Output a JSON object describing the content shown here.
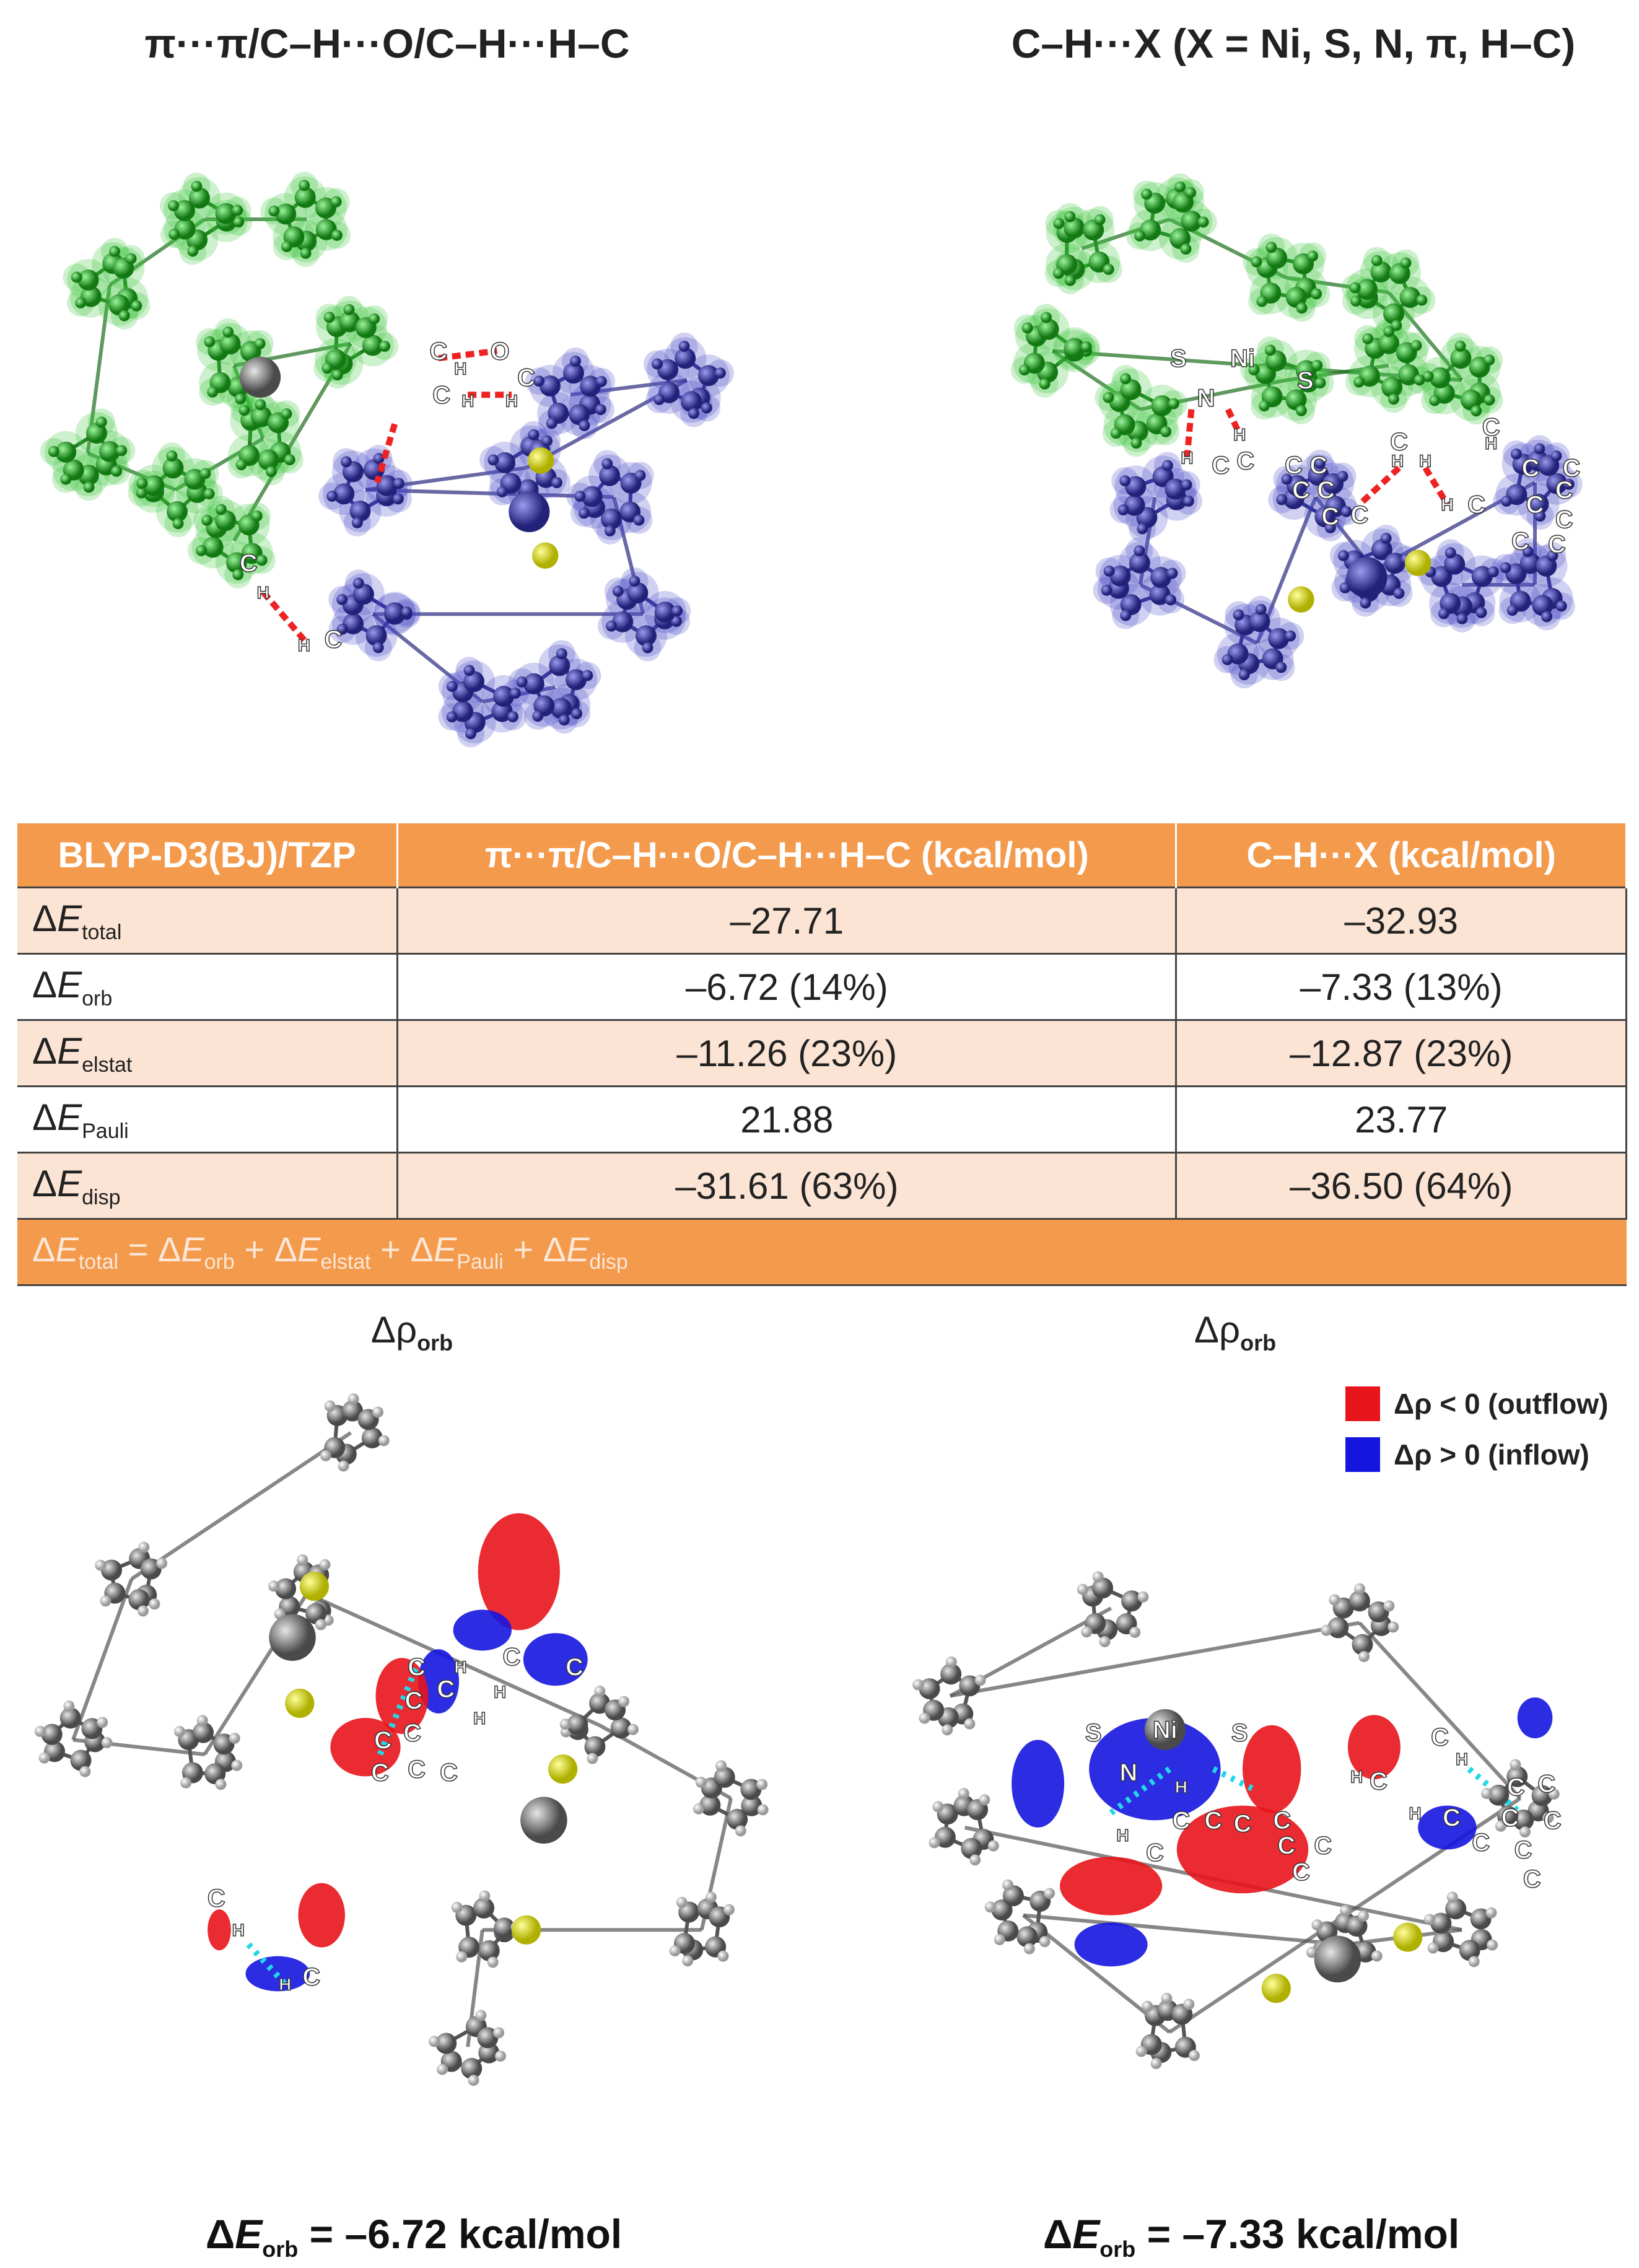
{
  "panels": {
    "top_left": {
      "title": "π···π/C–H···O/C–H···H–C",
      "atom_labels": [
        "C",
        "H",
        "O",
        "C",
        "C",
        "H",
        "H",
        "C",
        "H",
        "C",
        "H"
      ]
    },
    "top_right": {
      "title": "C–H···X (X = Ni, S, N, π, H–C)",
      "atom_labels": [
        "S",
        "Ni",
        "N",
        "S",
        "H",
        "H",
        "C",
        "C",
        "C",
        "C",
        "C",
        "C",
        "C",
        "C",
        "C",
        "H",
        "H",
        "C",
        "H",
        "C",
        "C",
        "C",
        "H",
        "C",
        "C",
        "C",
        "C",
        "C"
      ]
    },
    "bottom_left": {
      "heading": {
        "base": "Δρ",
        "sub": "orb"
      },
      "caption": {
        "delta": "Δ",
        "var": "E",
        "sub": "orb",
        "rest": "= –6.72 kcal/mol"
      },
      "atom_labels": [
        "C",
        "H",
        "C",
        "H",
        "C",
        "C",
        "C",
        "H",
        "C",
        "C",
        "C",
        "C",
        "C",
        "C",
        "H",
        "H",
        "C"
      ]
    },
    "bottom_right": {
      "heading": {
        "base": "Δρ",
        "sub": "orb"
      },
      "caption": {
        "delta": "Δ",
        "var": "E",
        "sub": "orb",
        "rest": "= –7.33 kcal/mol"
      },
      "atom_labels": [
        "S",
        "Ni",
        "S",
        "N",
        "H",
        "C",
        "C",
        "C",
        "C",
        "C",
        "C",
        "C",
        "C",
        "H",
        "C",
        "H",
        "H",
        "H",
        "C",
        "C",
        "C",
        "C",
        "C",
        "C",
        "C",
        "C",
        "C"
      ]
    }
  },
  "legend": [
    {
      "text": "Δρ < 0 (outflow)",
      "color": "#e8141b"
    },
    {
      "text": "Δρ > 0 (inflow)",
      "color": "#1515e0"
    }
  ],
  "table": {
    "header": [
      "BLYP-D3(BJ)/TZP",
      "π···π/C–H···O/C–H···H–C (kcal/mol)",
      "C–H···X (kcal/mol)"
    ],
    "rows": [
      {
        "label": {
          "delta": "Δ",
          "var": "E",
          "sub": "total"
        },
        "cells": [
          "–27.71",
          "–32.93"
        ]
      },
      {
        "label": {
          "delta": "Δ",
          "var": "E",
          "sub": "orb"
        },
        "cells": [
          "–6.72 (14%)",
          "–7.33 (13%)"
        ]
      },
      {
        "label": {
          "delta": "Δ",
          "var": "E",
          "sub": "elstat"
        },
        "cells": [
          "–11.26 (23%)",
          "–12.87 (23%)"
        ]
      },
      {
        "label": {
          "delta": "Δ",
          "var": "E",
          "sub": "Pauli"
        },
        "cells": [
          "21.88",
          "23.77"
        ]
      },
      {
        "label": {
          "delta": "Δ",
          "var": "E",
          "sub": "disp"
        },
        "cells": [
          "–31.61 (63%)",
          "–36.50 (64%)"
        ]
      }
    ],
    "footer": {
      "terms": [
        {
          "delta": "Δ",
          "var": "E",
          "sub": "total"
        },
        {
          "delta": "Δ",
          "var": "E",
          "sub": "orb"
        },
        {
          "delta": "Δ",
          "var": "E",
          "sub": "elstat"
        },
        {
          "delta": "Δ",
          "var": "E",
          "sub": "Pauli"
        },
        {
          "delta": "Δ",
          "var": "E",
          "sub": "disp"
        }
      ],
      "operators": [
        "=",
        "+",
        "+",
        "+"
      ]
    }
  }
}
